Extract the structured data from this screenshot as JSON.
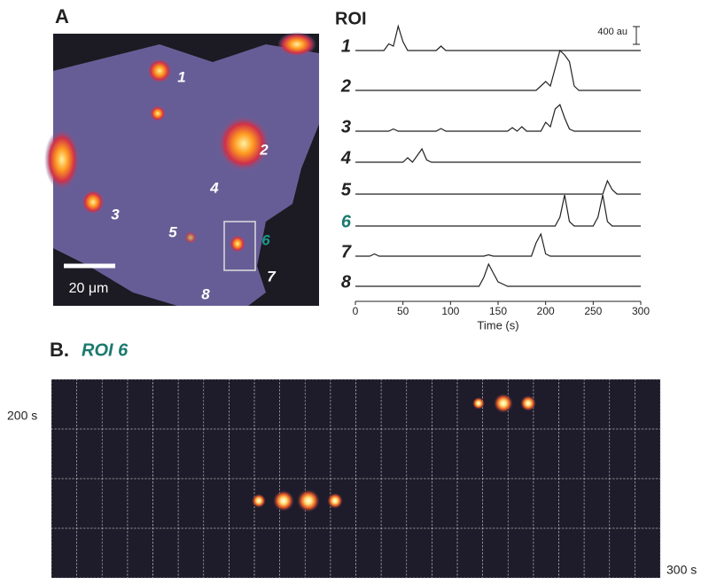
{
  "panel_a": {
    "label": "A",
    "image_labels": [
      "1",
      "2",
      "3",
      "4",
      "5",
      "6",
      "7",
      "8"
    ],
    "scale_bar": "20 μm"
  },
  "chart_data": {
    "type": "line",
    "title": "ROI",
    "xlabel": "Time (s)",
    "x": [
      0,
      5,
      10,
      15,
      20,
      25,
      30,
      35,
      40,
      45,
      50,
      55,
      60,
      65,
      70,
      75,
      80,
      85,
      90,
      95,
      100,
      105,
      110,
      115,
      120,
      125,
      130,
      135,
      140,
      145,
      150,
      155,
      160,
      165,
      170,
      175,
      180,
      185,
      190,
      195,
      200,
      205,
      210,
      215,
      220,
      225,
      230,
      235,
      240,
      245,
      250,
      255,
      260,
      265,
      270,
      275,
      280,
      285,
      290,
      295,
      300
    ],
    "series": [
      {
        "name": "1",
        "color": "#222222",
        "values": [
          0,
          0,
          0,
          0,
          0,
          0,
          0,
          150,
          100,
          550,
          200,
          0,
          0,
          0,
          0,
          0,
          0,
          0,
          100,
          0,
          0,
          0,
          0,
          0,
          0,
          0,
          0,
          0,
          0,
          0,
          0,
          0,
          0,
          0,
          0,
          0,
          0,
          0,
          0,
          0,
          0,
          0,
          0,
          0,
          0,
          0,
          0,
          0,
          0,
          0,
          0,
          0,
          0,
          0,
          0,
          0,
          0,
          0,
          0,
          0,
          0
        ]
      },
      {
        "name": "2",
        "color": "#222222",
        "values": [
          0,
          0,
          0,
          0,
          0,
          0,
          0,
          0,
          0,
          0,
          0,
          0,
          0,
          0,
          0,
          0,
          0,
          0,
          0,
          0,
          0,
          0,
          0,
          0,
          0,
          0,
          0,
          0,
          0,
          0,
          0,
          0,
          0,
          0,
          0,
          0,
          0,
          0,
          0,
          100,
          200,
          100,
          500,
          900,
          800,
          650,
          100,
          0,
          0,
          0,
          0,
          0,
          0,
          0,
          0,
          0,
          0,
          0,
          0,
          0,
          0
        ]
      },
      {
        "name": "3",
        "color": "#222222",
        "values": [
          0,
          0,
          0,
          0,
          0,
          0,
          0,
          0,
          50,
          0,
          0,
          0,
          0,
          0,
          0,
          0,
          0,
          0,
          60,
          0,
          0,
          0,
          0,
          0,
          0,
          0,
          0,
          0,
          0,
          0,
          0,
          0,
          0,
          80,
          0,
          100,
          0,
          0,
          0,
          0,
          200,
          100,
          500,
          600,
          300,
          50,
          0,
          0,
          0,
          0,
          0,
          0,
          0,
          0,
          0,
          0,
          0,
          0,
          0,
          0,
          0
        ]
      },
      {
        "name": "4",
        "color": "#222222",
        "values": [
          0,
          0,
          0,
          0,
          0,
          0,
          0,
          0,
          0,
          0,
          0,
          100,
          0,
          150,
          300,
          50,
          0,
          0,
          0,
          0,
          0,
          0,
          0,
          0,
          0,
          0,
          0,
          0,
          0,
          0,
          0,
          0,
          0,
          0,
          0,
          0,
          0,
          0,
          0,
          0,
          0,
          0,
          0,
          0,
          0,
          0,
          0,
          0,
          0,
          0,
          0,
          0,
          0,
          0,
          0,
          0,
          0,
          0,
          0,
          0,
          0
        ]
      },
      {
        "name": "5",
        "color": "#222222",
        "values": [
          0,
          0,
          0,
          0,
          0,
          0,
          0,
          0,
          0,
          0,
          0,
          0,
          0,
          0,
          0,
          0,
          0,
          0,
          0,
          0,
          0,
          0,
          0,
          0,
          0,
          0,
          0,
          0,
          0,
          0,
          0,
          0,
          0,
          0,
          0,
          0,
          0,
          0,
          0,
          0,
          0,
          0,
          0,
          0,
          0,
          0,
          0,
          0,
          0,
          0,
          0,
          0,
          0,
          300,
          100,
          0,
          0,
          0,
          0,
          0,
          0
        ]
      },
      {
        "name": "6",
        "color": "#222222",
        "label_color": "#1a7a6e",
        "values": [
          0,
          0,
          0,
          0,
          0,
          0,
          0,
          0,
          0,
          0,
          0,
          0,
          0,
          0,
          0,
          0,
          0,
          0,
          0,
          0,
          0,
          0,
          0,
          0,
          0,
          0,
          0,
          0,
          0,
          0,
          0,
          0,
          0,
          0,
          0,
          0,
          0,
          0,
          0,
          0,
          0,
          0,
          0,
          200,
          700,
          100,
          0,
          0,
          0,
          0,
          0,
          200,
          700,
          100,
          0,
          0,
          0,
          0,
          0,
          0,
          0
        ]
      },
      {
        "name": "7",
        "color": "#222222",
        "values": [
          0,
          0,
          0,
          0,
          50,
          0,
          0,
          0,
          0,
          0,
          0,
          0,
          0,
          0,
          0,
          0,
          0,
          0,
          0,
          0,
          0,
          0,
          0,
          0,
          0,
          0,
          0,
          0,
          30,
          0,
          0,
          0,
          0,
          0,
          0,
          0,
          0,
          0,
          300,
          500,
          50,
          0,
          0,
          0,
          0,
          0,
          0,
          0,
          0,
          0,
          0,
          0,
          0,
          0,
          0,
          0,
          0,
          0,
          0,
          0,
          0
        ]
      },
      {
        "name": "8",
        "color": "#222222",
        "values": [
          0,
          0,
          0,
          0,
          0,
          0,
          0,
          0,
          0,
          0,
          0,
          0,
          0,
          0,
          0,
          0,
          0,
          0,
          0,
          0,
          0,
          0,
          0,
          0,
          0,
          0,
          0,
          200,
          500,
          300,
          100,
          50,
          0,
          0,
          0,
          0,
          0,
          0,
          0,
          0,
          0,
          0,
          0,
          0,
          0,
          0,
          0,
          0,
          0,
          0,
          0,
          0,
          0,
          0,
          0,
          0,
          0,
          0,
          0,
          0,
          0
        ]
      }
    ],
    "xlim": [
      0,
      300
    ],
    "xticks": [
      0,
      50,
      100,
      150,
      200,
      250,
      300
    ],
    "scale_bar": {
      "value": 400,
      "label": "400 au"
    }
  },
  "panel_b": {
    "label": "B.",
    "title": "ROI 6",
    "start_label": "200 s",
    "end_label": "300 s"
  }
}
